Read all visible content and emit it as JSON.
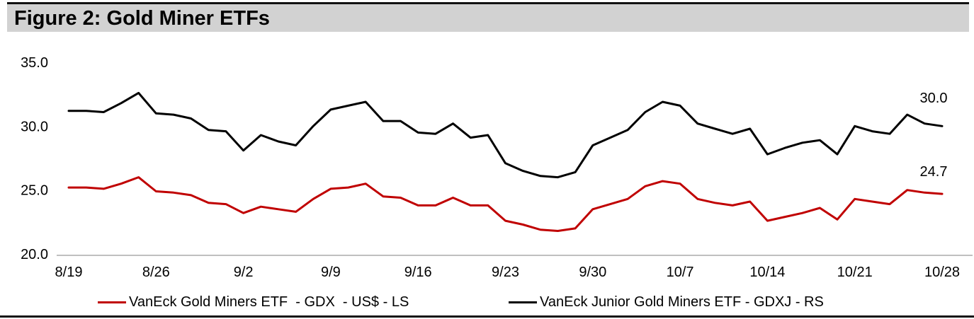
{
  "figure": {
    "title": "Figure 2: Gold Miner ETFs"
  },
  "colors": {
    "gdx_line": "#C00000",
    "gdxj_line": "#000000",
    "title_bar_bg": "#D2D2D2",
    "axis_line": "#BFBFBF",
    "rule": "#111111"
  },
  "chart_data": {
    "type": "line",
    "title": "Figure 2: Gold Miner ETFs",
    "xlabel": "",
    "ylabel": "",
    "ylim": [
      20.0,
      35.0
    ],
    "grid": false,
    "legend_position": "bottom",
    "y_tick_labels": [
      "35.0",
      "30.0",
      "25.0",
      "20.0"
    ],
    "y_tick_values": [
      35,
      30,
      25,
      20
    ],
    "x_tick_labels": [
      "8/19",
      "8/26",
      "9/2",
      "9/9",
      "9/16",
      "9/23",
      "9/30",
      "10/7",
      "10/14",
      "10/21",
      "10/28"
    ],
    "x_tick_days": [
      0,
      5,
      10,
      15,
      20,
      25,
      30,
      35,
      40,
      45,
      50
    ],
    "n_points": 51,
    "series": [
      {
        "name": "VanEck Gold Miners ETF  - GDX  - US$ - LS",
        "color": "#C00000",
        "scale": "LS",
        "end_label": "24.7",
        "values": [
          25.2,
          25.2,
          25.1,
          25.5,
          26.0,
          24.9,
          24.8,
          24.6,
          24.0,
          23.9,
          23.2,
          23.7,
          23.5,
          23.3,
          24.3,
          25.1,
          25.2,
          25.5,
          24.5,
          24.4,
          23.8,
          23.8,
          24.4,
          23.8,
          23.8,
          22.6,
          22.3,
          21.9,
          21.8,
          22.0,
          23.5,
          23.9,
          24.3,
          25.3,
          25.7,
          25.5,
          24.3,
          24.0,
          23.8,
          24.1,
          22.6,
          22.9,
          23.2,
          23.6,
          22.7,
          24.3,
          24.1,
          23.9,
          25.0,
          24.8,
          24.7
        ]
      },
      {
        "name": "VanEck Junior Gold Miners ETF - GDXJ - RS",
        "color": "#000000",
        "scale": "RS",
        "end_label": "30.0",
        "values": [
          31.2,
          31.2,
          31.1,
          31.8,
          32.6,
          31.0,
          30.9,
          30.6,
          29.7,
          29.6,
          28.1,
          29.3,
          28.8,
          28.5,
          30.0,
          31.3,
          31.6,
          31.9,
          30.4,
          30.4,
          29.5,
          29.4,
          30.2,
          29.1,
          29.3,
          27.1,
          26.5,
          26.1,
          26.0,
          26.4,
          28.5,
          29.1,
          29.7,
          31.1,
          31.9,
          31.6,
          30.2,
          29.8,
          29.4,
          29.8,
          27.8,
          28.3,
          28.7,
          28.9,
          27.8,
          30.0,
          29.6,
          29.4,
          30.9,
          30.2,
          30.0
        ]
      }
    ]
  }
}
